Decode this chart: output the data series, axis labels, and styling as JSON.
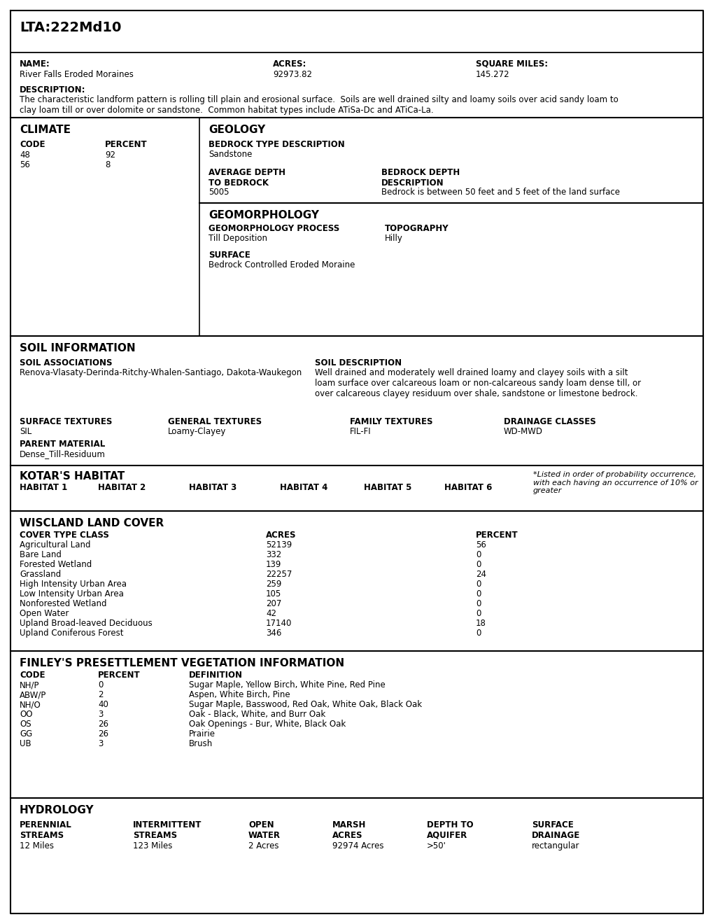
{
  "title": "LTA:222Md10",
  "name_label": "NAME:",
  "name_value": "River Falls Eroded Moraines",
  "acres_label": "ACRES:",
  "acres_value": "92973.82",
  "sqmiles_label": "SQUARE MILES:",
  "sqmiles_value": "145.272",
  "desc_label": "DESCRIPTION:",
  "desc_value": "The characteristic landform pattern is rolling till plain and erosional surface.  Soils are well drained silty and loamy soils over acid sandy loam to\nclay loam till or over dolomite or sandstone.  Common habitat types include ATiSa-Dc and ATiCa-La.",
  "climate_title": "CLIMATE",
  "climate_code_label": "CODE",
  "climate_percent_label": "PERCENT",
  "climate_data": [
    [
      "48",
      "92"
    ],
    [
      "56",
      "8"
    ]
  ],
  "geology_title": "GEOLOGY",
  "bedrock_type_label": "BEDROCK TYPE DESCRIPTION",
  "bedrock_type_value": "Sandstone",
  "avg_depth_label": "AVERAGE DEPTH\nTO BEDROCK",
  "avg_depth_value": "5005",
  "bedrock_depth_label": "BEDROCK DEPTH\nDESCRIPTION",
  "bedrock_depth_value": "Bedrock is between 50 feet and 5 feet of the land surface",
  "geomorph_title": "GEOMORPHOLOGY",
  "geomorph_process_label": "GEOMORPHOLOGY PROCESS",
  "geomorph_process_value": "Till Deposition",
  "topography_label": "TOPOGRAPHY",
  "topography_value": "Hilly",
  "surface_label": "SURFACE",
  "surface_value": "Bedrock Controlled Eroded Moraine",
  "soil_title": "SOIL INFORMATION",
  "soil_assoc_label": "SOIL ASSOCIATIONS",
  "soil_assoc_value": "Renova-Vlasaty-Derinda-Ritchy-Whalen-Santiago, Dakota-Waukegon",
  "soil_desc_label": "SOIL DESCRIPTION",
  "soil_desc_value": "Well drained and moderately well drained loamy and clayey soils with a silt\nloam surface over calcareous loam or non-calcareous sandy loam dense till, or\nover calcareous clayey residuum over shale, sandstone or limestone bedrock.",
  "surf_tex_label": "SURFACE TEXTURES",
  "surf_tex_value": "SIL",
  "gen_tex_label": "GENERAL TEXTURES",
  "gen_tex_value": "Loamy-Clayey",
  "fam_tex_label": "FAMILY TEXTURES",
  "fam_tex_value": "FIL-FI",
  "drain_label": "DRAINAGE CLASSES",
  "drain_value": "WD-MWD",
  "parent_label": "PARENT MATERIAL",
  "parent_value": "Dense_Till-Residuum",
  "kotar_title": "KOTAR'S HABITAT",
  "kotar_habitats": [
    "HABITAT 1",
    "HABITAT 2",
    "HABITAT 3",
    "HABITAT 4",
    "HABITAT 5",
    "HABITAT 6"
  ],
  "kotar_note": "*Listed in order of probability occurrence,\nwith each having an occurrence of 10% or\ngreater",
  "wiscland_title": "WISCLAND LAND COVER",
  "wiscland_col1": "COVER TYPE CLASS",
  "wiscland_col2": "ACRES",
  "wiscland_col3": "PERCENT",
  "wiscland_data": [
    [
      "Agricultural Land",
      "52139",
      "56"
    ],
    [
      "Bare Land",
      "332",
      "0"
    ],
    [
      "Forested Wetland",
      "139",
      "0"
    ],
    [
      "Grassland",
      "22257",
      "24"
    ],
    [
      "High Intensity Urban Area",
      "259",
      "0"
    ],
    [
      "Low Intensity Urban Area",
      "105",
      "0"
    ],
    [
      "Nonforested Wetland",
      "207",
      "0"
    ],
    [
      "Open Water",
      "42",
      "0"
    ],
    [
      "Upland Broad-leaved Deciduous",
      "17140",
      "18"
    ],
    [
      "Upland Coniferous Forest",
      "346",
      "0"
    ]
  ],
  "finley_title": "FINLEY'S PRESETTLEMENT VEGETATION INFORMATION",
  "finley_col1": "CODE",
  "finley_col2": "PERCENT",
  "finley_col3": "DEFINITION",
  "finley_data": [
    [
      "NH/P",
      "0",
      "Sugar Maple, Yellow Birch, White Pine, Red Pine"
    ],
    [
      "ABW/P",
      "2",
      "Aspen, White Birch, Pine"
    ],
    [
      "NH/O",
      "40",
      "Sugar Maple, Basswood, Red Oak, White Oak, Black Oak"
    ],
    [
      "OO",
      "3",
      "Oak - Black, White, and Burr Oak"
    ],
    [
      "OS",
      "26",
      "Oak Openings - Bur, White, Black Oak"
    ],
    [
      "GG",
      "26",
      "Prairie"
    ],
    [
      "UB",
      "3",
      "Brush"
    ]
  ],
  "hydrology_title": "HYDROLOGY",
  "perennial_label": "PERENNIAL\nSTREAMS",
  "perennial_value": "12 Miles",
  "intermittent_label": "INTERMITTENT\nSTREAMS",
  "intermittent_value": "123 Miles",
  "open_water_label": "OPEN\nWATER",
  "open_water_value": "2 Acres",
  "marsh_label": "MARSH\nACRES",
  "marsh_value": "92974 Acres",
  "depth_label": "DEPTH TO\nAQUIFER",
  "depth_value": ">50'",
  "surf_drain_label": "SURFACE\nDRAINAGE",
  "surf_drain_value": "rectangular"
}
